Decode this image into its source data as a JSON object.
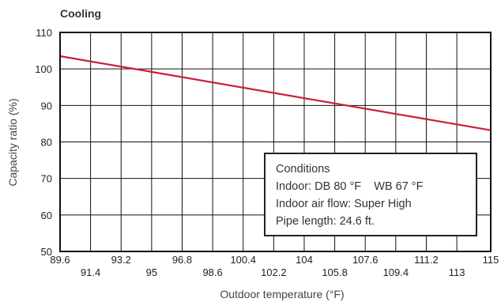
{
  "chart_data": {
    "type": "line",
    "title": "Cooling",
    "xlabel": "Outdoor temperature (°F)",
    "ylabel": "Capacity ratio (%)",
    "xlim": [
      89.6,
      115
    ],
    "ylim": [
      50,
      110
    ],
    "x_ticks_upper": [
      "89.6",
      "93.2",
      "96.8",
      "100.4",
      "104",
      "107.6",
      "111.2",
      "115"
    ],
    "x_ticks_lower": [
      "91.4",
      "95",
      "98.6",
      "102.2",
      "105.8",
      "109.4",
      "113"
    ],
    "y_ticks": [
      "50",
      "60",
      "70",
      "80",
      "90",
      "100",
      "110"
    ],
    "grid": true,
    "series": [
      {
        "color": "#c8203c",
        "x": [
          89.6,
          115
        ],
        "y": [
          103.5,
          83.2
        ]
      }
    ],
    "annotation": {
      "lines": [
        "Conditions",
        "Indoor: DB 80 °F    WB 67 °F",
        "Indoor air flow: Super High",
        "Pipe length: 24.6 ft."
      ],
      "placement": "bottom-right"
    }
  }
}
